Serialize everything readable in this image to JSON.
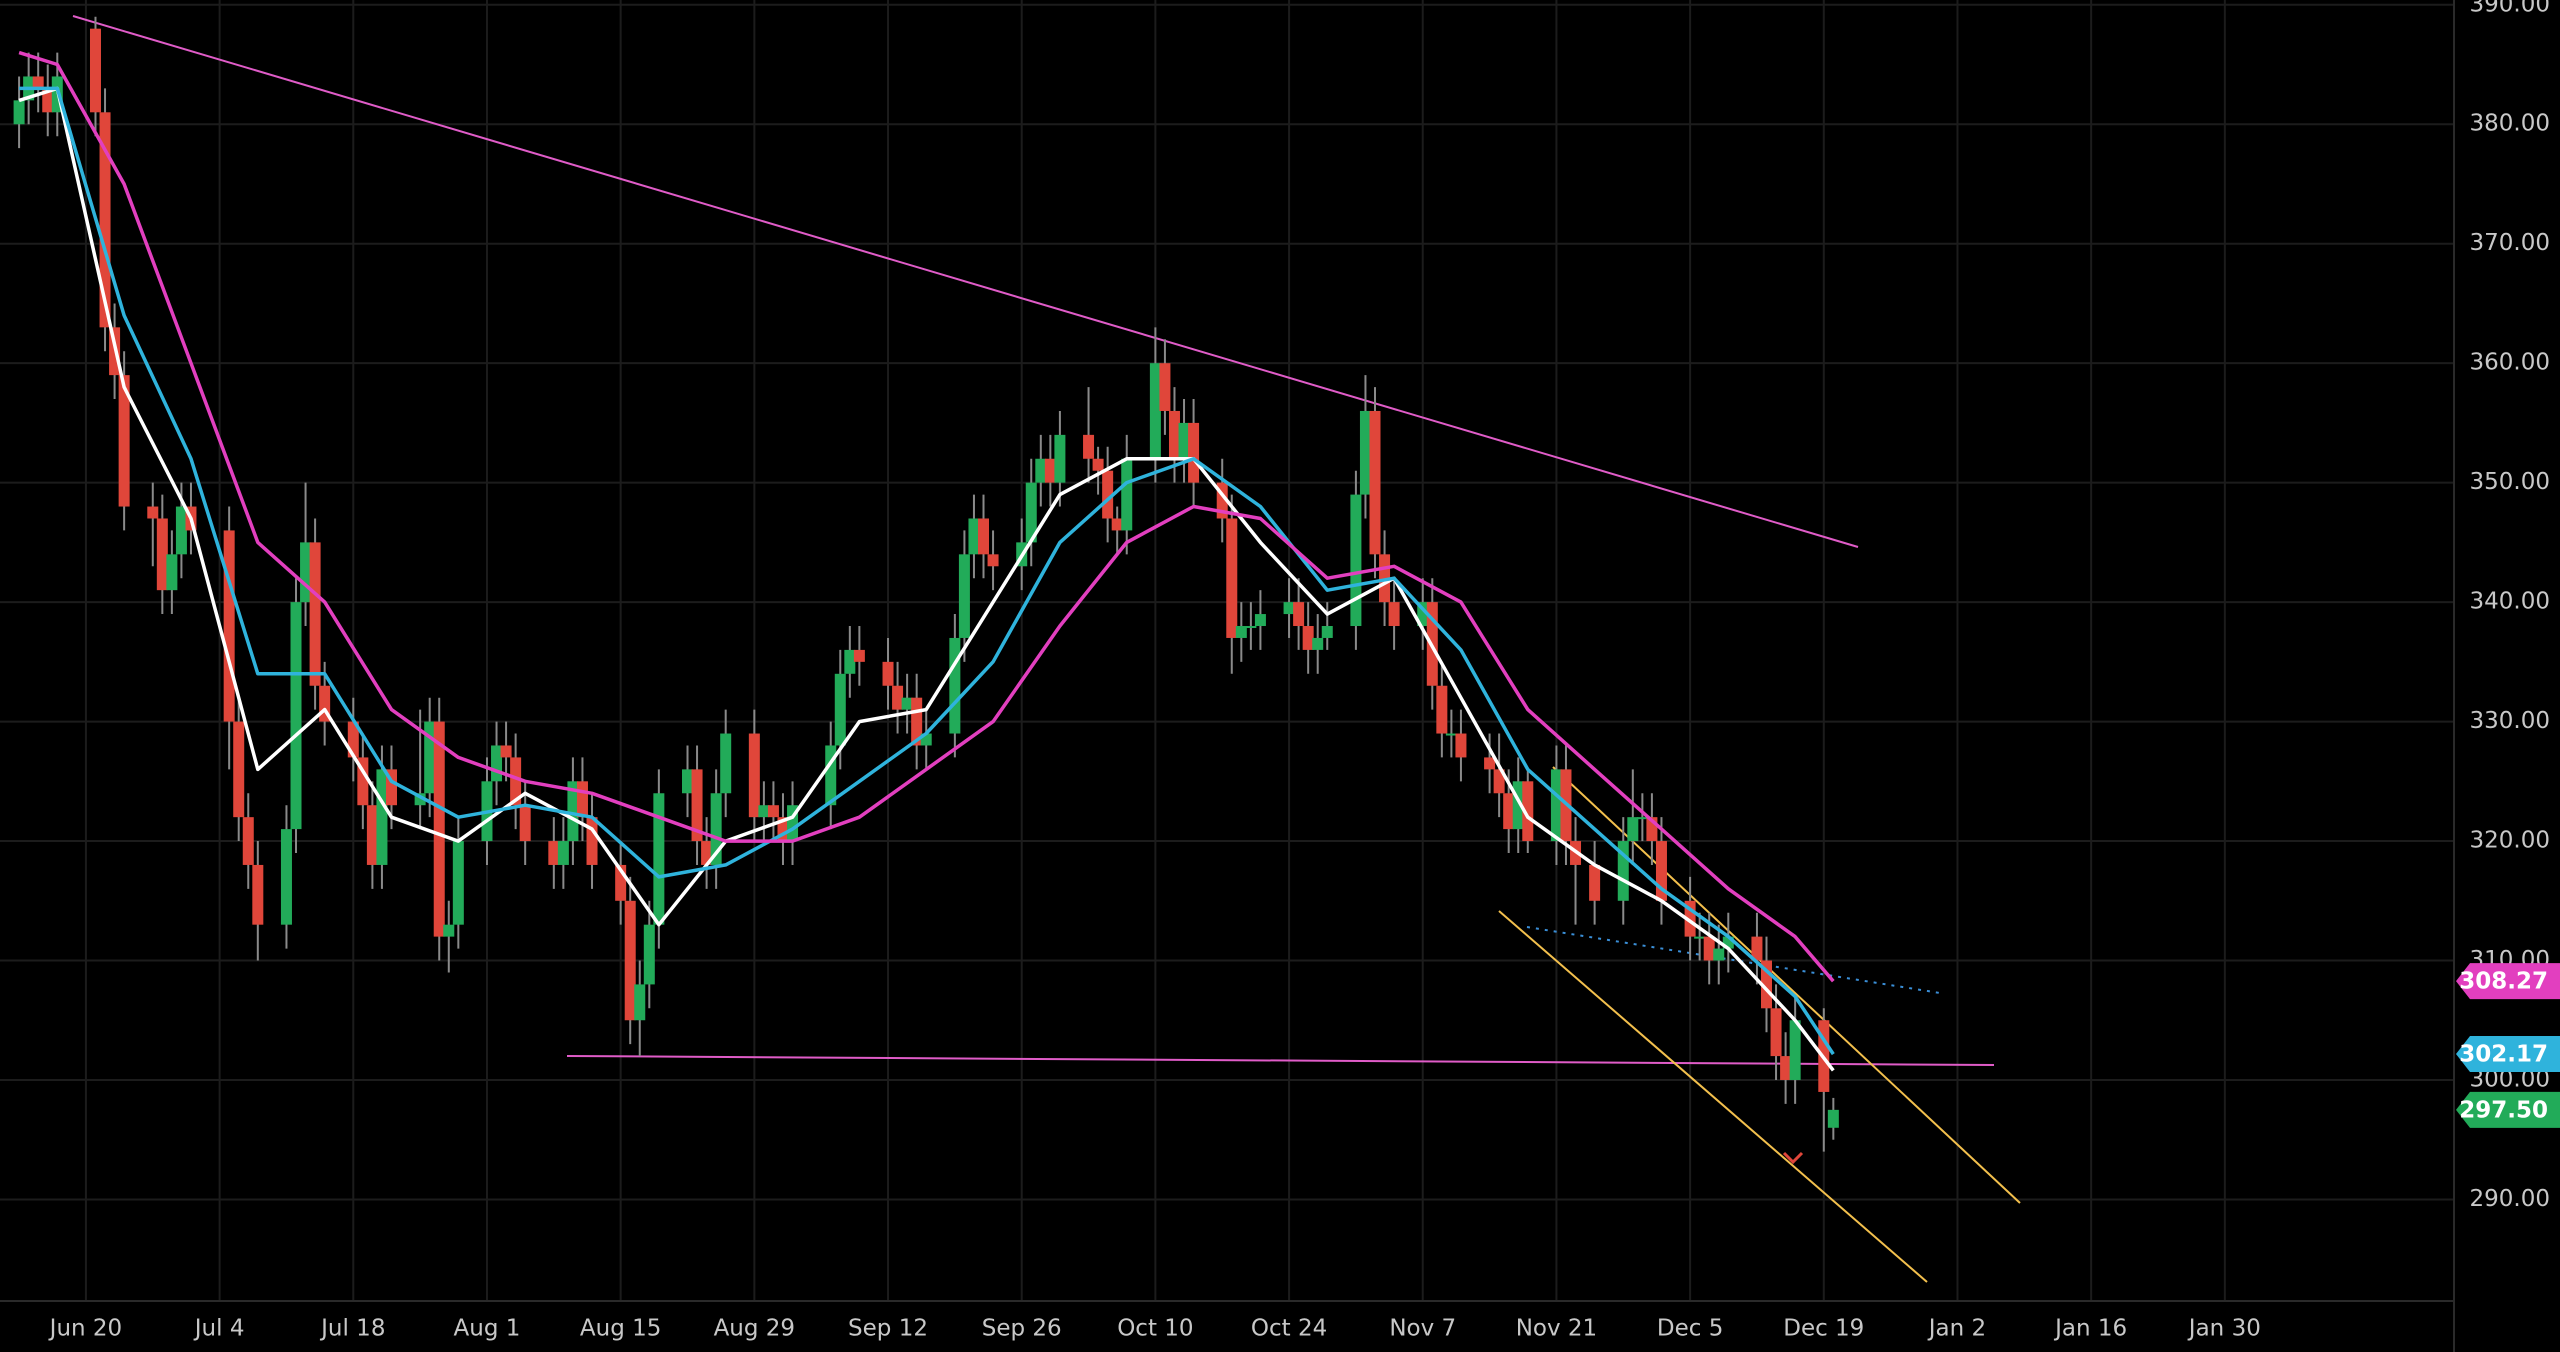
{
  "chart_data": {
    "type": "candlestick",
    "up_color": "#22ab59",
    "down_color": "#e0463a",
    "wick_color": "#8a8a8a",
    "grid": true,
    "xlim": [
      "Jun 11",
      "Feb 23"
    ],
    "xticks": [
      "Jun 20",
      "Jul 4",
      "Jul 18",
      "Aug 1",
      "Aug 15",
      "Aug 29",
      "Sep 12",
      "Sep 26",
      "Oct 10",
      "Oct 24",
      "Nov 7",
      "Nov 21",
      "Dec 5",
      "Dec 19",
      "Jan 2",
      "Jan 16",
      "Jan 30"
    ],
    "ylim": [
      281.5,
      390.4
    ],
    "yticks": [
      {
        "value": 290,
        "label": "290.00"
      },
      {
        "value": 300,
        "label": "300.00"
      },
      {
        "value": 310,
        "label": "310.00"
      },
      {
        "value": 320,
        "label": "320.00"
      },
      {
        "value": 330,
        "label": "330.00"
      },
      {
        "value": 340,
        "label": "340.00"
      },
      {
        "value": 350,
        "label": "350.00"
      },
      {
        "value": 360,
        "label": "360.00"
      },
      {
        "value": 370,
        "label": "370.00"
      },
      {
        "value": 380,
        "label": "380.00"
      },
      {
        "value": 390,
        "label": "390.00"
      }
    ],
    "x": [
      "Jun 13",
      "Jun 14",
      "Jun 15",
      "Jun 16",
      "Jun 17",
      "Jun 21",
      "Jun 22",
      "Jun 23",
      "Jun 24",
      "Jun 27",
      "Jun 28",
      "Jun 29",
      "Jun 30",
      "Jul 1",
      "Jul 5",
      "Jul 6",
      "Jul 7",
      "Jul 8",
      "Jul 11",
      "Jul 12",
      "Jul 13",
      "Jul 14",
      "Jul 15",
      "Jul 18",
      "Jul 19",
      "Jul 20",
      "Jul 21",
      "Jul 22",
      "Jul 25",
      "Jul 26",
      "Jul 27",
      "Jul 28",
      "Jul 29",
      "Aug 1",
      "Aug 2",
      "Aug 3",
      "Aug 4",
      "Aug 5",
      "Aug 8",
      "Aug 9",
      "Aug 10",
      "Aug 11",
      "Aug 12",
      "Aug 15",
      "Aug 16",
      "Aug 17",
      "Aug 18",
      "Aug 19",
      "Aug 22",
      "Aug 23",
      "Aug 24",
      "Aug 25",
      "Aug 26",
      "Aug 29",
      "Aug 30",
      "Aug 31",
      "Sep 1",
      "Sep 2",
      "Sep 6",
      "Sep 7",
      "Sep 8",
      "Sep 9",
      "Sep 12",
      "Sep 13",
      "Sep 14",
      "Sep 15",
      "Sep 16",
      "Sep 19",
      "Sep 20",
      "Sep 21",
      "Sep 22",
      "Sep 23",
      "Sep 26",
      "Sep 27",
      "Sep 28",
      "Sep 29",
      "Sep 30",
      "Oct 3",
      "Oct 4",
      "Oct 5",
      "Oct 6",
      "Oct 7",
      "Oct 10",
      "Oct 11",
      "Oct 12",
      "Oct 13",
      "Oct 14",
      "Oct 17",
      "Oct 18",
      "Oct 19",
      "Oct 20",
      "Oct 21",
      "Oct 24",
      "Oct 25",
      "Oct 26",
      "Oct 27",
      "Oct 28",
      "Oct 31",
      "Nov 1",
      "Nov 2",
      "Nov 3",
      "Nov 4",
      "Nov 7",
      "Nov 8",
      "Nov 9",
      "Nov 10",
      "Nov 11",
      "Nov 14",
      "Nov 15",
      "Nov 16",
      "Nov 17",
      "Nov 18",
      "Nov 21",
      "Nov 22",
      "Nov 23",
      "Nov 25",
      "Nov 28",
      "Nov 29",
      "Nov 30",
      "Dec 1",
      "Dec 2",
      "Dec 5",
      "Dec 6",
      "Dec 7",
      "Dec 8",
      "Dec 9",
      "Dec 12",
      "Dec 13",
      "Dec 14",
      "Dec 15",
      "Dec 16",
      "Dec 19",
      "Dec 20"
    ],
    "candles": [
      [
        380,
        384,
        378,
        382
      ],
      [
        382,
        386,
        380,
        384
      ],
      [
        384,
        386,
        381,
        383
      ],
      [
        383,
        385,
        379,
        381
      ],
      [
        381,
        386,
        379,
        384
      ],
      [
        388,
        389,
        379,
        381
      ],
      [
        381,
        383,
        361,
        363
      ],
      [
        363,
        365,
        357,
        359
      ],
      [
        359,
        361,
        346,
        348
      ],
      [
        348,
        350,
        343,
        347
      ],
      [
        347,
        349,
        339,
        341
      ],
      [
        341,
        346,
        339,
        344
      ],
      [
        344,
        350,
        342,
        348
      ],
      [
        348,
        350,
        344,
        346
      ],
      [
        346,
        348,
        326,
        330
      ],
      [
        330,
        332,
        320,
        322
      ],
      [
        322,
        324,
        316,
        318
      ],
      [
        318,
        320,
        310,
        313
      ],
      [
        313,
        323,
        311,
        321
      ],
      [
        321,
        342,
        319,
        340
      ],
      [
        340,
        350,
        338,
        345
      ],
      [
        345,
        347,
        331,
        333
      ],
      [
        333,
        335,
        328,
        330
      ],
      [
        330,
        332,
        325,
        327
      ],
      [
        327,
        329,
        321,
        323
      ],
      [
        323,
        325,
        316,
        318
      ],
      [
        318,
        328,
        316,
        326
      ],
      [
        326,
        328,
        321,
        323
      ],
      [
        323,
        331,
        321,
        324
      ],
      [
        324,
        332,
        322,
        330
      ],
      [
        330,
        332,
        310,
        312
      ],
      [
        312,
        315,
        309,
        313
      ],
      [
        313,
        322,
        311,
        320
      ],
      [
        320,
        327,
        318,
        325
      ],
      [
        325,
        330,
        323,
        328
      ],
      [
        328,
        330,
        325,
        327
      ],
      [
        327,
        329,
        321,
        323
      ],
      [
        323,
        325,
        318,
        320
      ],
      [
        320,
        322,
        316,
        318
      ],
      [
        318,
        322,
        316,
        320
      ],
      [
        320,
        327,
        318,
        325
      ],
      [
        325,
        327,
        320,
        322
      ],
      [
        322,
        324,
        316,
        318
      ],
      [
        318,
        320,
        313,
        315
      ],
      [
        315,
        317,
        303,
        305
      ],
      [
        305,
        310,
        302,
        308
      ],
      [
        308,
        315,
        306,
        313
      ],
      [
        313,
        326,
        311,
        324
      ],
      [
        324,
        328,
        322,
        326
      ],
      [
        326,
        328,
        318,
        320
      ],
      [
        320,
        322,
        316,
        318
      ],
      [
        318,
        326,
        316,
        324
      ],
      [
        324,
        331,
        322,
        329
      ],
      [
        329,
        331,
        320,
        322
      ],
      [
        322,
        325,
        320,
        323
      ],
      [
        323,
        325,
        320,
        322
      ],
      [
        322,
        324,
        318,
        320
      ],
      [
        320,
        325,
        318,
        323
      ],
      [
        323,
        330,
        321,
        328
      ],
      [
        328,
        336,
        326,
        334
      ],
      [
        334,
        338,
        332,
        336
      ],
      [
        336,
        338,
        333,
        335
      ],
      [
        335,
        337,
        331,
        333
      ],
      [
        333,
        335,
        329,
        331
      ],
      [
        331,
        334,
        329,
        332
      ],
      [
        332,
        334,
        326,
        328
      ],
      [
        328,
        331,
        326,
        329
      ],
      [
        329,
        339,
        327,
        337
      ],
      [
        337,
        346,
        335,
        344
      ],
      [
        344,
        349,
        342,
        347
      ],
      [
        347,
        349,
        342,
        344
      ],
      [
        344,
        346,
        341,
        343
      ],
      [
        343,
        347,
        341,
        345
      ],
      [
        345,
        352,
        343,
        350
      ],
      [
        350,
        354,
        348,
        352
      ],
      [
        352,
        354,
        348,
        350
      ],
      [
        350,
        356,
        348,
        354
      ],
      [
        354,
        358,
        350,
        352
      ],
      [
        352,
        353,
        349,
        351
      ],
      [
        351,
        353,
        345,
        347
      ],
      [
        347,
        348,
        344,
        346
      ],
      [
        346,
        354,
        344,
        352
      ],
      [
        352,
        363,
        350,
        360
      ],
      [
        360,
        362,
        354,
        356
      ],
      [
        356,
        358,
        350,
        352
      ],
      [
        352,
        357,
        350,
        355
      ],
      [
        355,
        357,
        348,
        350
      ],
      [
        350,
        352,
        345,
        347
      ],
      [
        347,
        349,
        334,
        337
      ],
      [
        337,
        340,
        335,
        338
      ],
      [
        338,
        340,
        336,
        338
      ],
      [
        338,
        341,
        336,
        339
      ],
      [
        339,
        342,
        337,
        340
      ],
      [
        340,
        342,
        336,
        338
      ],
      [
        338,
        340,
        334,
        336
      ],
      [
        336,
        339,
        334,
        337
      ],
      [
        337,
        340,
        336,
        338
      ],
      [
        338,
        351,
        336,
        349
      ],
      [
        349,
        359,
        347,
        356
      ],
      [
        356,
        358,
        342,
        344
      ],
      [
        344,
        346,
        338,
        340
      ],
      [
        340,
        342,
        336,
        338
      ],
      [
        338,
        342,
        336,
        340
      ],
      [
        340,
        342,
        331,
        333
      ],
      [
        333,
        335,
        327,
        329
      ],
      [
        329,
        331,
        327,
        329
      ],
      [
        329,
        331,
        325,
        327
      ],
      [
        327,
        329,
        324,
        326
      ],
      [
        326,
        329,
        322,
        324
      ],
      [
        324,
        326,
        319,
        321
      ],
      [
        321,
        327,
        319,
        325
      ],
      [
        325,
        326,
        319,
        320
      ],
      [
        320,
        328,
        318,
        326
      ],
      [
        326,
        328,
        318,
        320
      ],
      [
        320,
        322,
        313,
        318
      ],
      [
        318,
        320,
        313,
        315
      ],
      [
        315,
        322,
        313,
        320
      ],
      [
        320,
        326,
        318,
        322
      ],
      [
        322,
        324,
        320,
        322
      ],
      [
        322,
        324,
        318,
        320
      ],
      [
        320,
        322,
        313,
        315
      ],
      [
        315,
        317,
        310,
        312
      ],
      [
        312,
        314,
        310,
        312
      ],
      [
        312,
        314,
        308,
        310
      ],
      [
        310,
        313,
        308,
        311
      ],
      [
        311,
        314,
        309,
        312
      ],
      [
        312,
        314,
        308,
        310
      ],
      [
        310,
        312,
        304,
        306
      ],
      [
        306,
        308,
        300,
        302
      ],
      [
        302,
        304,
        298,
        300
      ],
      [
        300,
        307,
        298,
        305
      ],
      [
        305,
        306,
        294,
        299
      ],
      [
        296,
        298.5,
        295,
        297.5
      ]
    ],
    "close_tag": "297.50",
    "series": [
      {
        "color": "#ffffff",
        "x": [
          "Jun 13",
          "Jun 17",
          "Jun 24",
          "Jul 1",
          "Jul 8",
          "Jul 15",
          "Jul 22",
          "Jul 29",
          "Aug 5",
          "Aug 12",
          "Aug 19",
          "Aug 26",
          "Sep 2",
          "Sep 9",
          "Sep 16",
          "Sep 23",
          "Sep 30",
          "Oct 7",
          "Oct 14",
          "Oct 21",
          "Oct 28",
          "Nov 4",
          "Nov 11",
          "Nov 18",
          "Nov 25",
          "Dec 2",
          "Dec 9",
          "Dec 16",
          "Dec 20"
        ],
        "values": [
          382,
          383,
          358,
          347,
          326,
          331,
          322,
          320,
          324,
          321,
          313,
          320,
          322,
          330,
          331,
          340,
          349,
          352,
          352,
          345,
          339,
          342,
          332,
          322,
          318,
          315,
          311,
          305,
          300.8
        ]
      },
      {
        "color": "#2fb3dc",
        "x": [
          "Jun 13",
          "Jun 17",
          "Jun 24",
          "Jul 1",
          "Jul 8",
          "Jul 15",
          "Jul 22",
          "Jul 29",
          "Aug 5",
          "Aug 12",
          "Aug 19",
          "Aug 26",
          "Sep 2",
          "Sep 9",
          "Sep 16",
          "Sep 23",
          "Sep 30",
          "Oct 7",
          "Oct 14",
          "Oct 21",
          "Oct 28",
          "Nov 4",
          "Nov 11",
          "Nov 18",
          "Nov 25",
          "Dec 2",
          "Dec 9",
          "Dec 16",
          "Dec 20"
        ],
        "values": [
          383,
          383,
          364,
          352,
          334,
          334,
          325,
          322,
          323,
          322,
          317,
          318,
          321,
          325,
          329,
          335,
          345,
          350,
          352,
          348,
          341,
          342,
          336,
          326,
          321,
          316,
          312,
          307,
          302.17
        ]
      },
      {
        "color": "#e23fbf",
        "x": [
          "Jun 13",
          "Jun 17",
          "Jun 24",
          "Jul 1",
          "Jul 8",
          "Jul 15",
          "Jul 22",
          "Jul 29",
          "Aug 5",
          "Aug 12",
          "Aug 19",
          "Aug 26",
          "Sep 2",
          "Sep 9",
          "Sep 16",
          "Sep 23",
          "Sep 30",
          "Oct 7",
          "Oct 14",
          "Oct 21",
          "Oct 28",
          "Nov 4",
          "Nov 11",
          "Nov 18",
          "Nov 25",
          "Dec 2",
          "Dec 9",
          "Dec 16",
          "Dec 20"
        ],
        "values": [
          386,
          385,
          375,
          360,
          345,
          340,
          331,
          327,
          325,
          324,
          322,
          320,
          320,
          322,
          326,
          330,
          338,
          345,
          348,
          347,
          342,
          343,
          340,
          331,
          326,
          321,
          316,
          312,
          308.27
        ]
      }
    ]
  }
}
